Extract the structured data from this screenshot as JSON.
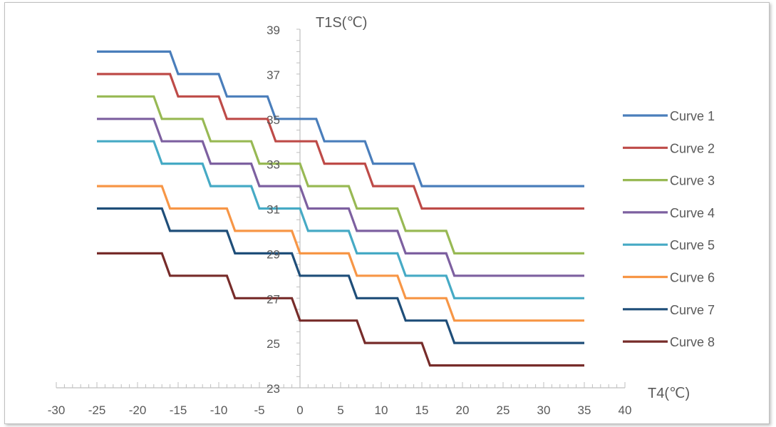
{
  "chart_data": {
    "type": "line",
    "xlabel": "T4(℃)",
    "ylabel": "T1S(℃)",
    "xlim": [
      -30,
      40
    ],
    "ylim": [
      23,
      39
    ],
    "x_ticks": [
      -30,
      -25,
      -20,
      -15,
      -10,
      -5,
      0,
      5,
      10,
      15,
      20,
      25,
      30,
      35,
      40
    ],
    "y_ticks": [
      39,
      37,
      35,
      33,
      31,
      29,
      27,
      25,
      23
    ],
    "grid": false,
    "legend_position": "right",
    "series": [
      {
        "name": "Curve 1",
        "color": "#4a7ebb",
        "x": [
          -25,
          -16,
          -15,
          -10,
          -9,
          -4,
          -3,
          2,
          3,
          8,
          9,
          14,
          15,
          35
        ],
        "y": [
          38,
          38,
          37,
          37,
          36,
          36,
          35,
          35,
          34,
          34,
          33,
          33,
          32,
          32
        ]
      },
      {
        "name": "Curve 2",
        "color": "#be4b48",
        "x": [
          -25,
          -16,
          -15,
          -10,
          -9,
          -4,
          -3,
          2,
          3,
          8,
          9,
          14,
          15,
          35
        ],
        "y": [
          37,
          37,
          36,
          36,
          35,
          35,
          34,
          34,
          33,
          33,
          32,
          32,
          31,
          31
        ]
      },
      {
        "name": "Curve 3",
        "color": "#98b954",
        "x": [
          -25,
          -18,
          -17,
          -12,
          -11,
          -6,
          -5,
          0,
          1,
          6,
          7,
          12,
          13,
          18,
          19,
          35
        ],
        "y": [
          36,
          36,
          35,
          35,
          34,
          34,
          33,
          33,
          32,
          32,
          31,
          31,
          30,
          30,
          29,
          29
        ]
      },
      {
        "name": "Curve 4",
        "color": "#7d60a0",
        "x": [
          -25,
          -18,
          -17,
          -12,
          -11,
          -6,
          -5,
          0,
          1,
          6,
          7,
          12,
          13,
          18,
          19,
          35
        ],
        "y": [
          35,
          35,
          34,
          34,
          33,
          33,
          32,
          32,
          31,
          31,
          30,
          30,
          29,
          29,
          28,
          28
        ]
      },
      {
        "name": "Curve 5",
        "color": "#46aac5",
        "x": [
          -25,
          -18,
          -17,
          -12,
          -11,
          -6,
          -5,
          0,
          1,
          6,
          7,
          12,
          13,
          18,
          19,
          35
        ],
        "y": [
          34,
          34,
          33,
          33,
          32,
          32,
          31,
          31,
          30,
          30,
          29,
          29,
          28,
          28,
          27,
          27
        ]
      },
      {
        "name": "Curve 6",
        "color": "#f79646",
        "x": [
          -25,
          -17,
          -16,
          -9,
          -8,
          -1,
          0,
          6,
          7,
          12,
          13,
          18,
          19,
          35
        ],
        "y": [
          32,
          32,
          31,
          31,
          30,
          30,
          29,
          29,
          28,
          28,
          27,
          27,
          26,
          26
        ]
      },
      {
        "name": "Curve 7",
        "color": "#1f4e79",
        "x": [
          -25,
          -17,
          -16,
          -9,
          -8,
          -1,
          0,
          6,
          7,
          12,
          13,
          18,
          19,
          35
        ],
        "y": [
          31,
          31,
          30,
          30,
          29,
          29,
          28,
          28,
          27,
          27,
          26,
          26,
          25,
          25
        ]
      },
      {
        "name": "Curve 8",
        "color": "#772c2a",
        "x": [
          -25,
          -17,
          -16,
          -9,
          -8,
          -1,
          0,
          7,
          8,
          15,
          16,
          35
        ],
        "y": [
          29,
          29,
          28,
          28,
          27,
          27,
          26,
          26,
          25,
          25,
          24,
          24
        ]
      }
    ]
  }
}
